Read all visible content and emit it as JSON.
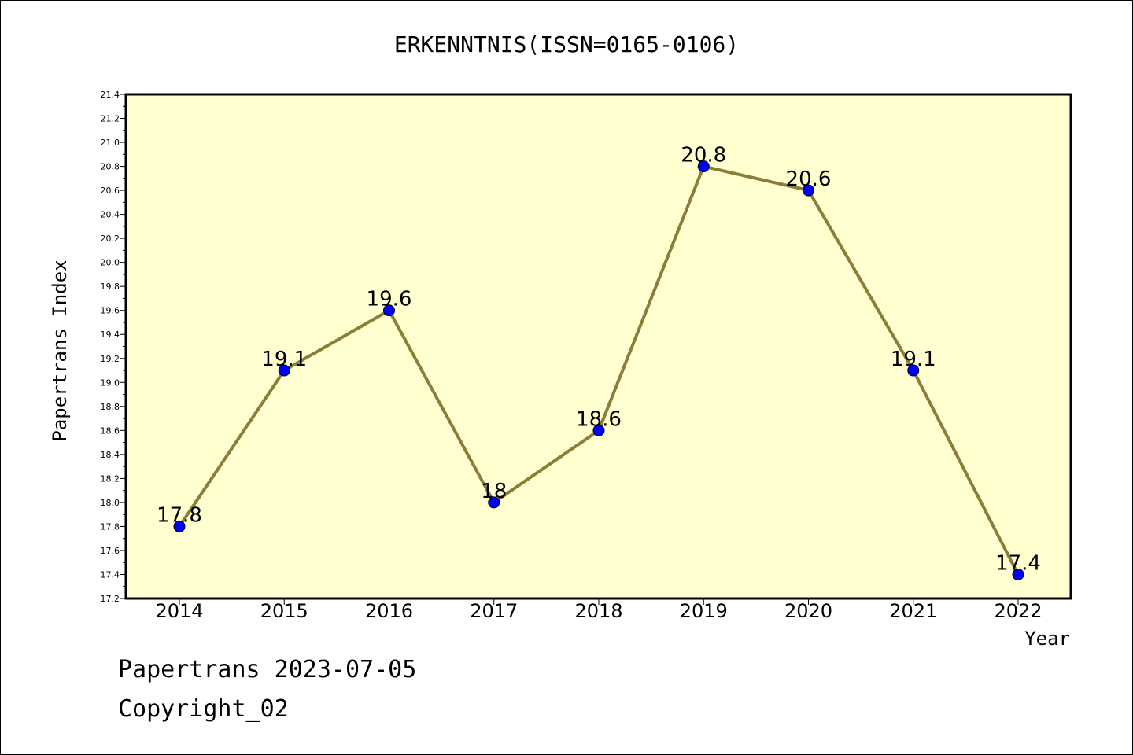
{
  "chart_data": {
    "type": "line",
    "title": "ERKENNTNIS(ISSN=0165-0106)",
    "xlabel": "Year",
    "ylabel": "Papertrans Index",
    "categories": [
      "2014",
      "2015",
      "2016",
      "2017",
      "2018",
      "2019",
      "2020",
      "2021",
      "2022"
    ],
    "series": [
      {
        "values": [
          17.8,
          19.1,
          19.6,
          18,
          18.6,
          20.8,
          20.6,
          19.1,
          17.4
        ],
        "labels": [
          "17.8",
          "19.1",
          "19.6",
          "18",
          "18.6",
          "20.8",
          "20.6",
          "19.1",
          "17.4"
        ]
      }
    ],
    "ylim": [
      17.2,
      21.4
    ],
    "yticks": [
      "17.2",
      "17.4",
      "17.6",
      "17.8",
      "18.0",
      "18.2",
      "18.4",
      "18.6",
      "18.8",
      "19.0",
      "19.2",
      "19.4",
      "19.6",
      "19.8",
      "20.0",
      "20.2",
      "20.4",
      "20.6",
      "20.8",
      "21.0",
      "21.2",
      "21.4"
    ],
    "grid": false,
    "colors": {
      "plot_background": "#ffffd0",
      "line": "#8b7d3a",
      "marker": "#0000ff"
    }
  },
  "footer": {
    "line1": "Papertrans 2023-07-05",
    "line2": "Copyright_02"
  }
}
